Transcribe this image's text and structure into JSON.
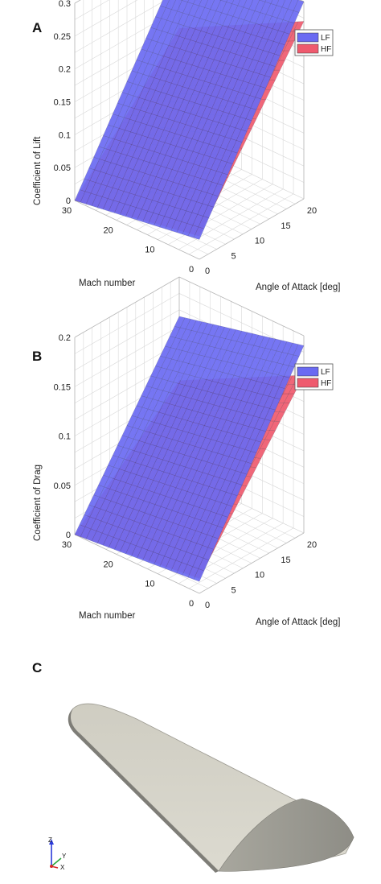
{
  "panels": [
    {
      "letter": "A",
      "chart_data": {
        "type": "surface",
        "xlabel": "Mach number",
        "ylabel": "Angle of Attack [deg]",
        "zlabel": "Coefficient of Lift",
        "x_ticks": [
          "0",
          "10",
          "20",
          "30"
        ],
        "y_ticks": [
          "0",
          "5",
          "10",
          "15",
          "20"
        ],
        "z_ticks": [
          "0",
          "0.05",
          "0.1",
          "0.15",
          "0.2",
          "0.25",
          "0.3"
        ],
        "xlim": [
          0,
          30
        ],
        "ylim": [
          0,
          20
        ],
        "zlim": [
          0,
          0.3
        ],
        "grid": true,
        "legend_position": "top-right",
        "series": [
          {
            "name": "LF",
            "color": "#6a6af2",
            "corners": {
              "mach0_aoa0": 0.03,
              "mach0_aoa20": 0.3,
              "mach30_aoa20": 0.27,
              "mach30_aoa0": 0.0
            }
          },
          {
            "name": "HF",
            "color": "#ef5a6e",
            "corners": {
              "mach0_aoa0": 0.035,
              "mach0_aoa20": 0.27,
              "mach30_aoa20": 0.17,
              "mach30_aoa0": 0.0
            }
          }
        ]
      }
    },
    {
      "letter": "B",
      "chart_data": {
        "type": "surface",
        "xlabel": "Mach number",
        "ylabel": "Angle of Attack [deg]",
        "zlabel": "Coefficient of Drag",
        "x_ticks": [
          "0",
          "10",
          "20",
          "30"
        ],
        "y_ticks": [
          "0",
          "5",
          "10",
          "15",
          "20"
        ],
        "z_ticks": [
          "0",
          "0.05",
          "0.1",
          "0.15",
          "0.2"
        ],
        "xlim": [
          0,
          30
        ],
        "ylim": [
          0,
          20
        ],
        "zlim": [
          0,
          0.2
        ],
        "grid": true,
        "legend_position": "top-right",
        "series": [
          {
            "name": "LF",
            "color": "#6a6af2",
            "corners": {
              "mach0_aoa0": 0.012,
              "mach0_aoa20": 0.19,
              "mach30_aoa20": 0.16,
              "mach30_aoa0": 0.0
            }
          },
          {
            "name": "HF",
            "color": "#ef5a6e",
            "corners": {
              "mach0_aoa0": 0.015,
              "mach0_aoa20": 0.16,
              "mach30_aoa20": 0.095,
              "mach30_aoa0": 0.0
            }
          }
        ]
      }
    }
  ],
  "panelC": {
    "letter": "C",
    "body_color": "#d8d6cc",
    "triad": {
      "z": "Z",
      "y": "Y",
      "x": "X"
    }
  }
}
